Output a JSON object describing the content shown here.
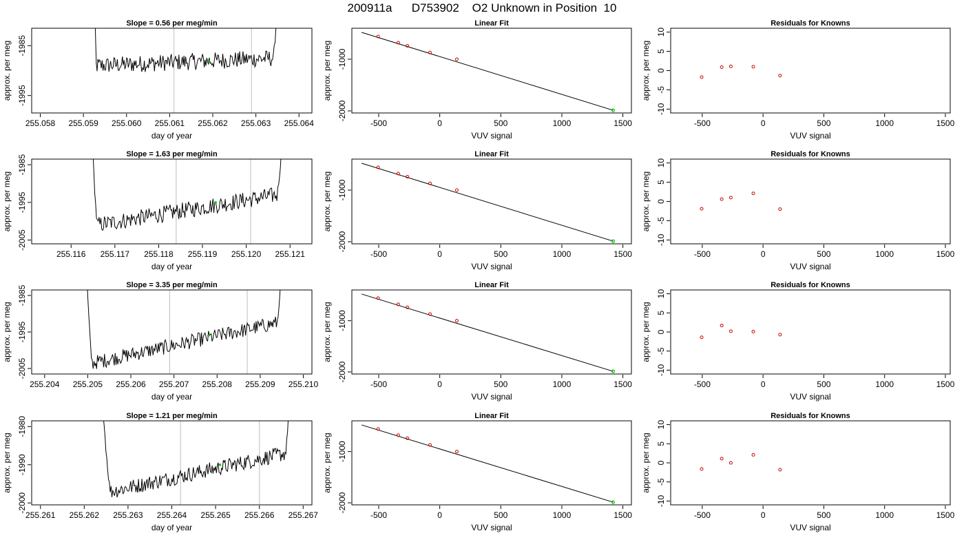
{
  "page_title": "200911a      D753902    O2 Unknown in Position  10",
  "colors": {
    "axis": "#000000",
    "line": "#000000",
    "marker_known": "#cc0000",
    "marker_unknown": "#00cc00",
    "vline": "#c8c8c8"
  },
  "chart_data": [
    {
      "id": "r1-time",
      "type": "line",
      "title": "Slope =  0.56  per meg/min",
      "xlabel": "day of year",
      "ylabel": "approx. per meg",
      "xlim": [
        255.0578,
        255.0643
      ],
      "ylim": [
        -1998.5,
        -1981.5
      ],
      "x_ticks": [
        255.058,
        255.059,
        255.06,
        255.061,
        255.062,
        255.063,
        255.064
      ],
      "x_tick_labels": [
        "255.058",
        "255.059",
        "255.060",
        "255.061",
        "255.062",
        "255.063",
        "255.064"
      ],
      "y_ticks": [
        -1985,
        -1995
      ],
      "series_range": [
        255.0592,
        255.0637
      ],
      "flat_start": 255.0593,
      "flat_end": 255.0634,
      "y_start": -1989,
      "y_end": -1987.5,
      "noise": 1.7,
      "vlines": [
        255.0611,
        255.0629
      ],
      "highlight": {
        "x": 255.0619,
        "y": -1988
      }
    },
    {
      "id": "r1-fit",
      "type": "scatter",
      "title": "Linear Fit",
      "xlabel": "VUV signal",
      "ylabel": "approx. per meg",
      "xlim": [
        -720,
        1570
      ],
      "ylim": [
        -2040,
        -400
      ],
      "x_ticks": [
        -500,
        0,
        500,
        1000,
        1500
      ],
      "y_ticks": [
        -1000,
        -2000
      ],
      "known": [
        [
          -505,
          -560
        ],
        [
          -340,
          -680
        ],
        [
          -265,
          -740
        ],
        [
          -80,
          -870
        ],
        [
          140,
          -1000
        ]
      ],
      "unknown": [
        [
          1420,
          -1988
        ]
      ],
      "fit_line": [
        [
          -640,
          -480
        ],
        [
          1420,
          -1988
        ]
      ]
    },
    {
      "id": "r1-res",
      "type": "scatter",
      "title": "Residuals for Knowns",
      "xlabel": "VUV signal",
      "ylabel": "approx. per meg",
      "xlim": [
        -760,
        1540
      ],
      "ylim": [
        -11,
        11
      ],
      "x_ticks": [
        -500,
        0,
        500,
        1000,
        1500
      ],
      "y_ticks": [
        10,
        5,
        0,
        -5,
        -10
      ],
      "known": [
        [
          -505,
          -1.7
        ],
        [
          -340,
          0.9
        ],
        [
          -265,
          1.1
        ],
        [
          -80,
          1.0
        ],
        [
          140,
          -1.3
        ]
      ]
    },
    {
      "id": "r2-time",
      "type": "line",
      "title": "Slope =  1.63  per meg/min",
      "xlabel": "day of year",
      "ylabel": "approx. per meg",
      "xlim": [
        255.1151,
        255.1215
      ],
      "ylim": [
        -2006,
        -1983.5
      ],
      "x_ticks": [
        255.116,
        255.117,
        255.118,
        255.119,
        255.12,
        255.121
      ],
      "x_tick_labels": [
        "255.116",
        "255.117",
        "255.118",
        "255.119",
        "255.120",
        "255.121"
      ],
      "y_ticks": [
        -1985,
        -1995,
        -2005
      ],
      "series_range": [
        255.1164,
        255.121
      ],
      "flat_start": 255.1166,
      "flat_end": 255.1207,
      "y_start": -2001,
      "y_end": -1993,
      "noise": 2.2,
      "vlines": [
        255.1184,
        255.1201
      ],
      "highlight": {
        "x": 255.1193,
        "y": -1995
      }
    },
    {
      "id": "r2-fit",
      "type": "scatter",
      "title": "Linear Fit",
      "xlabel": "VUV signal",
      "ylabel": "approx. per meg",
      "xlim": [
        -720,
        1570
      ],
      "ylim": [
        -2040,
        -400
      ],
      "x_ticks": [
        -500,
        0,
        500,
        1000,
        1500
      ],
      "y_ticks": [
        -1000,
        -2000
      ],
      "known": [
        [
          -505,
          -560
        ],
        [
          -340,
          -680
        ],
        [
          -265,
          -740
        ],
        [
          -80,
          -870
        ],
        [
          140,
          -1000
        ]
      ],
      "unknown": [
        [
          1420,
          -1988
        ]
      ],
      "fit_line": [
        [
          -640,
          -480
        ],
        [
          1420,
          -1988
        ]
      ]
    },
    {
      "id": "r2-res",
      "type": "scatter",
      "title": "Residuals for Knowns",
      "xlabel": "VUV signal",
      "ylabel": "approx. per meg",
      "xlim": [
        -760,
        1540
      ],
      "ylim": [
        -11,
        11
      ],
      "x_ticks": [
        -500,
        0,
        500,
        1000,
        1500
      ],
      "y_ticks": [
        10,
        5,
        0,
        -5,
        -10
      ],
      "known": [
        [
          -505,
          -1.9
        ],
        [
          -340,
          0.6
        ],
        [
          -265,
          1.0
        ],
        [
          -80,
          2.1
        ],
        [
          140,
          -2.0
        ]
      ]
    },
    {
      "id": "r3-time",
      "type": "line",
      "title": "Slope =  3.35  per meg/min",
      "xlabel": "day of year",
      "ylabel": "approx. per meg",
      "xlim": [
        255.2037,
        255.2102
      ],
      "ylim": [
        -2006.5,
        -1983.5
      ],
      "x_ticks": [
        255.204,
        255.205,
        255.206,
        255.207,
        255.208,
        255.209,
        255.21
      ],
      "x_tick_labels": [
        "255.204",
        "255.205",
        "255.206",
        "255.207",
        "255.208",
        "255.209",
        "255.210"
      ],
      "y_ticks": [
        -1985,
        -1995,
        -2005
      ],
      "series_range": [
        255.2049,
        255.2096
      ],
      "flat_start": 255.2051,
      "flat_end": 255.2094,
      "y_start": -2003.5,
      "y_end": -1992.5,
      "noise": 2.0,
      "vlines": [
        255.2069,
        255.2087
      ],
      "highlight": {
        "x": 255.2078,
        "y": -1996
      }
    },
    {
      "id": "r3-fit",
      "type": "scatter",
      "title": "Linear Fit",
      "xlabel": "VUV signal",
      "ylabel": "approx. per meg",
      "xlim": [
        -720,
        1570
      ],
      "ylim": [
        -2040,
        -400
      ],
      "x_ticks": [
        -500,
        0,
        500,
        1000,
        1500
      ],
      "y_ticks": [
        -1000,
        -2000
      ],
      "known": [
        [
          -505,
          -560
        ],
        [
          -340,
          -680
        ],
        [
          -265,
          -740
        ],
        [
          -80,
          -870
        ],
        [
          140,
          -1000
        ]
      ],
      "unknown": [
        [
          1420,
          -1988
        ]
      ],
      "fit_line": [
        [
          -640,
          -480
        ],
        [
          1420,
          -1988
        ]
      ]
    },
    {
      "id": "r3-res",
      "type": "scatter",
      "title": "Residuals for Knowns",
      "xlabel": "VUV signal",
      "ylabel": "approx. per meg",
      "xlim": [
        -760,
        1540
      ],
      "ylim": [
        -11,
        11
      ],
      "x_ticks": [
        -500,
        0,
        500,
        1000,
        1500
      ],
      "y_ticks": [
        10,
        5,
        0,
        -5,
        -10
      ],
      "known": [
        [
          -505,
          -1.4
        ],
        [
          -340,
          1.7
        ],
        [
          -265,
          0.2
        ],
        [
          -80,
          0.1
        ],
        [
          140,
          -0.7
        ]
      ]
    },
    {
      "id": "r4-time",
      "type": "line",
      "title": "Slope =  1.21  per meg/min",
      "xlabel": "day of year",
      "ylabel": "approx. per meg",
      "xlim": [
        255.2608,
        255.2672
      ],
      "ylim": [
        -2000.5,
        -1978.5
      ],
      "x_ticks": [
        255.261,
        255.262,
        255.263,
        255.264,
        255.265,
        255.266,
        255.267
      ],
      "x_tick_labels": [
        "255.261",
        "255.262",
        "255.263",
        "255.264",
        "255.265",
        "255.266",
        "255.267"
      ],
      "y_ticks": [
        -1980,
        -1990,
        -2000
      ],
      "series_range": [
        255.2623,
        255.2668
      ],
      "flat_start": 255.2626,
      "flat_end": 255.2666,
      "y_start": -1997,
      "y_end": -1987,
      "noise": 2.0,
      "vlines": [
        255.2642,
        255.266
      ],
      "highlight": {
        "x": 255.2651,
        "y": -1990
      }
    },
    {
      "id": "r4-fit",
      "type": "scatter",
      "title": "Linear Fit",
      "xlabel": "VUV signal",
      "ylabel": "approx. per meg",
      "xlim": [
        -720,
        1570
      ],
      "ylim": [
        -2040,
        -400
      ],
      "x_ticks": [
        -500,
        0,
        500,
        1000,
        1500
      ],
      "y_ticks": [
        -1000,
        -2000
      ],
      "known": [
        [
          -505,
          -560
        ],
        [
          -340,
          -680
        ],
        [
          -265,
          -740
        ],
        [
          -80,
          -870
        ],
        [
          140,
          -1000
        ]
      ],
      "unknown": [
        [
          1420,
          -1988
        ]
      ],
      "fit_line": [
        [
          -640,
          -480
        ],
        [
          1420,
          -1988
        ]
      ]
    },
    {
      "id": "r4-res",
      "type": "scatter",
      "title": "Residuals for Knowns",
      "xlabel": "VUV signal",
      "ylabel": "approx. per meg",
      "xlim": [
        -760,
        1540
      ],
      "ylim": [
        -11,
        11
      ],
      "x_ticks": [
        -500,
        0,
        500,
        1000,
        1500
      ],
      "y_ticks": [
        10,
        5,
        0,
        -5,
        -10
      ],
      "known": [
        [
          -505,
          -1.6
        ],
        [
          -340,
          1.1
        ],
        [
          -265,
          0.0
        ],
        [
          -80,
          2.1
        ],
        [
          140,
          -1.8
        ]
      ]
    }
  ]
}
